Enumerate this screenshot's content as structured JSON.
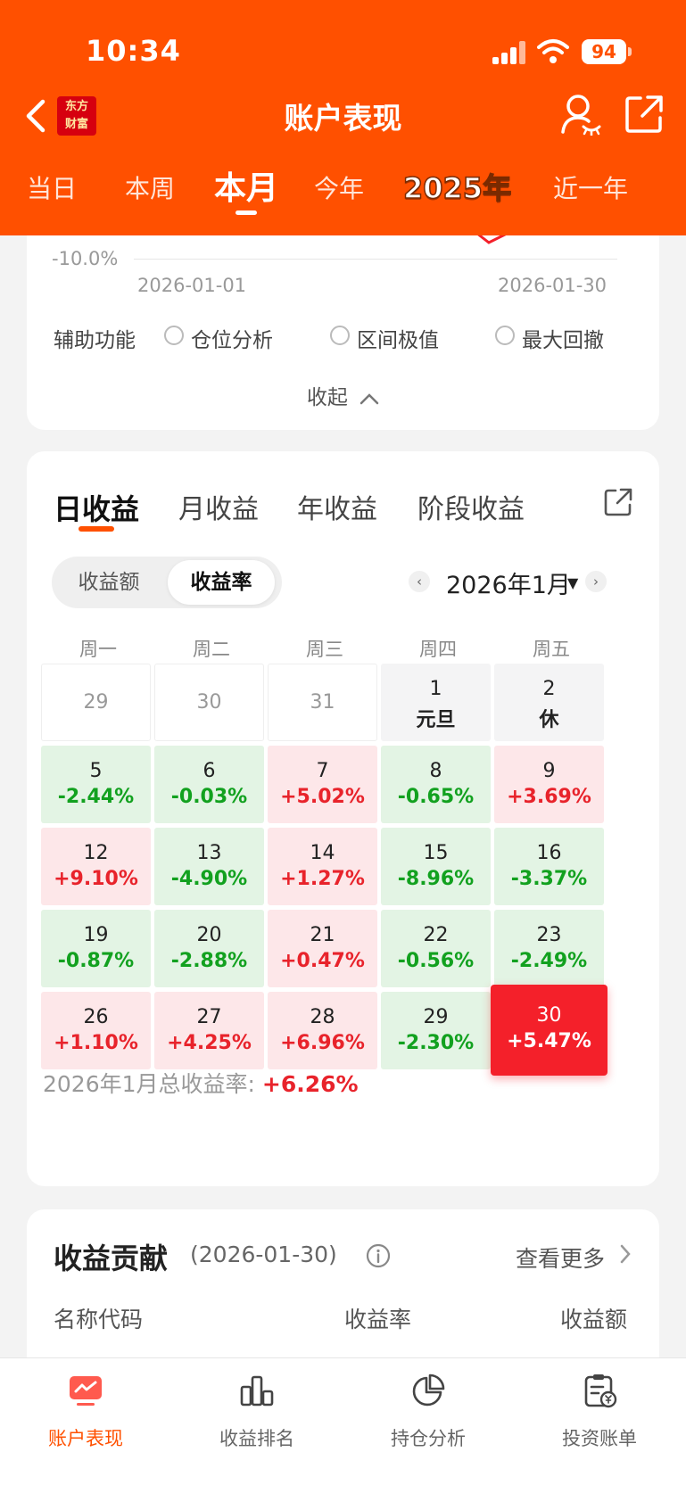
{
  "status_bar": {
    "time": "10:34",
    "battery": "94"
  },
  "header": {
    "logo_text_1": "东方",
    "logo_text_2": "财富",
    "title": "账户表现",
    "period_tabs": [
      "当日",
      "本周",
      "本月",
      "今年",
      "2025年",
      "近一年"
    ],
    "active_period": "本月"
  },
  "chart_card": {
    "y_tick": "-10.0%",
    "x_start": "2026-01-01",
    "x_end": "2026-01-30",
    "aux_label": "辅助功能",
    "options": [
      "仓位分析",
      "区间极值",
      "最大回撤"
    ],
    "collapse_label": "收起"
  },
  "returns_card": {
    "tabs": [
      "日收益",
      "月收益",
      "年收益",
      "阶段收益"
    ],
    "active_tab": "日收益",
    "toggle": [
      "收益额",
      "收益率"
    ],
    "toggle_active": "收益率",
    "month": "2026年1月",
    "weekdays": [
      "周一",
      "周二",
      "周三",
      "周四",
      "周五"
    ],
    "weeks": [
      [
        {
          "day": "29",
          "type": "empty"
        },
        {
          "day": "30",
          "type": "empty"
        },
        {
          "day": "31",
          "type": "empty"
        },
        {
          "day": "1",
          "label": "元旦",
          "type": "holiday"
        },
        {
          "day": "2",
          "label": "休",
          "type": "holiday"
        }
      ],
      [
        {
          "day": "5",
          "value": "-2.44%",
          "type": "neg"
        },
        {
          "day": "6",
          "value": "-0.03%",
          "type": "neg"
        },
        {
          "day": "7",
          "value": "+5.02%",
          "type": "pos"
        },
        {
          "day": "8",
          "value": "-0.65%",
          "type": "neg"
        },
        {
          "day": "9",
          "value": "+3.69%",
          "type": "pos"
        }
      ],
      [
        {
          "day": "12",
          "value": "+9.10%",
          "type": "pos"
        },
        {
          "day": "13",
          "value": "-4.90%",
          "type": "neg"
        },
        {
          "day": "14",
          "value": "+1.27%",
          "type": "pos"
        },
        {
          "day": "15",
          "value": "-8.96%",
          "type": "neg"
        },
        {
          "day": "16",
          "value": "-3.37%",
          "type": "neg"
        }
      ],
      [
        {
          "day": "19",
          "value": "-0.87%",
          "type": "neg"
        },
        {
          "day": "20",
          "value": "-2.88%",
          "type": "neg"
        },
        {
          "day": "21",
          "value": "+0.47%",
          "type": "pos"
        },
        {
          "day": "22",
          "value": "-0.56%",
          "type": "neg"
        },
        {
          "day": "23",
          "value": "-2.49%",
          "type": "neg"
        }
      ],
      [
        {
          "day": "26",
          "value": "+1.10%",
          "type": "pos"
        },
        {
          "day": "27",
          "value": "+4.25%",
          "type": "pos"
        },
        {
          "day": "28",
          "value": "+6.96%",
          "type": "pos"
        },
        {
          "day": "29",
          "value": "-2.30%",
          "type": "neg"
        },
        {
          "day": "30",
          "value": "+5.47%",
          "type": "selected"
        }
      ]
    ],
    "total_label": "2026年1月总收益率:",
    "total_value": "+6.26%"
  },
  "contrib_card": {
    "title": "收益贡献",
    "date": "(2026-01-30)",
    "more": "查看更多",
    "columns": [
      "名称代码",
      "收益率",
      "收益额"
    ]
  },
  "bottom_nav": {
    "items": [
      "账户表现",
      "收益排名",
      "持仓分析",
      "投资账单"
    ],
    "active": "账户表现"
  },
  "colors": {
    "brand": "#ff5000",
    "up": "#e8232b",
    "down": "#12a11f"
  }
}
